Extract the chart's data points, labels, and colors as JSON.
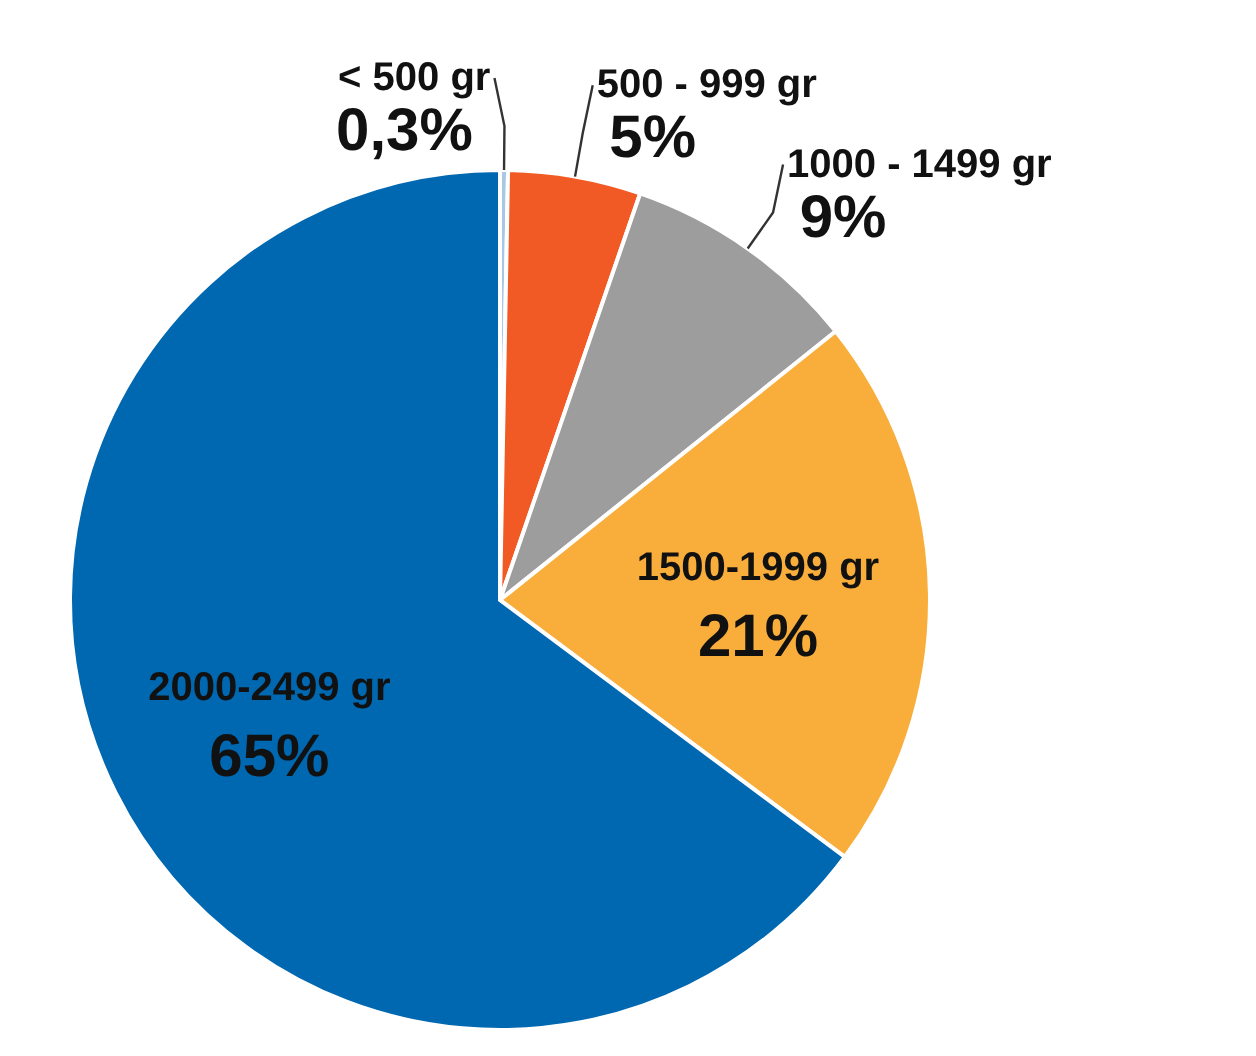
{
  "chart_data": {
    "type": "pie",
    "categories": [
      "< 500 gr",
      "500 - 999 gr",
      "1000 - 1499 gr",
      "1500-1999 gr",
      "2000-2499 gr"
    ],
    "values": [
      0.3,
      5,
      9,
      21,
      65
    ],
    "colors": [
      "#a9c8e8",
      "#f15a24",
      "#9d9d9d",
      "#f9ae3b",
      "#0067b1"
    ],
    "value_labels": [
      "0,3%",
      "5%",
      "9%",
      "21%",
      "65%"
    ]
  }
}
